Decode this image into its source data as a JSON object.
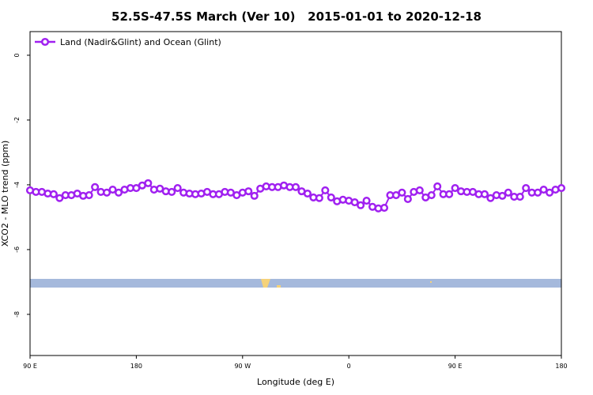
{
  "chart_data": {
    "type": "line",
    "title": "52.5S-47.5S March (Ver 10)   2015-01-01 to 2020-12-18",
    "x_label": "Longitude (deg E)",
    "y_label": "XCO2 - MLO trend (ppm)",
    "x": [
      90,
      95,
      100,
      105,
      110,
      115,
      120,
      125,
      130,
      135,
      140,
      145,
      150,
      155,
      160,
      165,
      170,
      175,
      180,
      185,
      190,
      195,
      200,
      205,
      210,
      215,
      220,
      225,
      230,
      235,
      240,
      245,
      250,
      255,
      260,
      265,
      270,
      275,
      280,
      285,
      290,
      295,
      300,
      305,
      310,
      315,
      320,
      325,
      330,
      335,
      340,
      345,
      350,
      355,
      360,
      365,
      370,
      375,
      380,
      385,
      390,
      395,
      400,
      405,
      410,
      415,
      420,
      425,
      430,
      435,
      440,
      445,
      450,
      455,
      460,
      465,
      470,
      475,
      480,
      485,
      490,
      495,
      500,
      505,
      510,
      515,
      520,
      525,
      530,
      535,
      540
    ],
    "series": [
      {
        "name": "Land (Nadir&Glint) and Ocean (Glint)",
        "color": "#a020f0",
        "values": [
          -4.17,
          -4.22,
          -4.22,
          -4.27,
          -4.29,
          -4.41,
          -4.32,
          -4.32,
          -4.27,
          -4.34,
          -4.32,
          -4.07,
          -4.22,
          -4.24,
          -4.15,
          -4.24,
          -4.15,
          -4.1,
          -4.1,
          -4.02,
          -3.95,
          -4.15,
          -4.12,
          -4.2,
          -4.22,
          -4.1,
          -4.24,
          -4.27,
          -4.29,
          -4.27,
          -4.22,
          -4.29,
          -4.29,
          -4.22,
          -4.24,
          -4.32,
          -4.24,
          -4.2,
          -4.34,
          -4.12,
          -4.05,
          -4.07,
          -4.07,
          -4.02,
          -4.07,
          -4.07,
          -4.2,
          -4.27,
          -4.39,
          -4.41,
          -4.17,
          -4.39,
          -4.51,
          -4.46,
          -4.49,
          -4.54,
          -4.63,
          -4.49,
          -4.68,
          -4.73,
          -4.71,
          -4.32,
          -4.32,
          -4.24,
          -4.44,
          -4.22,
          -4.17,
          -4.39,
          -4.32,
          -4.05,
          -4.29,
          -4.29,
          -4.1,
          -4.2,
          -4.22,
          -4.22,
          -4.29,
          -4.29,
          -4.41,
          -4.32,
          -4.34,
          -4.24,
          -4.37,
          -4.37,
          -4.1,
          -4.24,
          -4.24,
          -4.15,
          -4.24,
          -4.15,
          -4.1
        ]
      }
    ],
    "xlim": [
      90,
      540
    ],
    "xticks": [
      {
        "value": 90,
        "label": "90 E"
      },
      180,
      {
        "value": 270,
        "label": "90 W"
      },
      {
        "value": 360,
        "label": "0"
      },
      {
        "value": 450,
        "label": "90 E"
      },
      {
        "value": 540,
        "label": "180"
      }
    ],
    "ylim": [
      -9.27,
      0.73
    ],
    "yticks": [
      0,
      -2,
      -4,
      -6,
      -8
    ],
    "legend": "top-left"
  }
}
